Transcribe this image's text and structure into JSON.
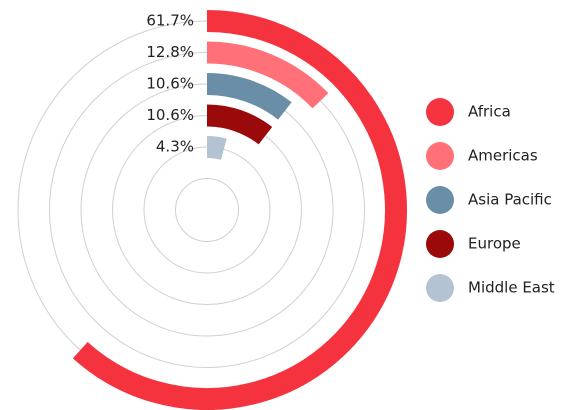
{
  "chart_data": {
    "type": "radial_bar",
    "categories": [
      "Africa",
      "Americas",
      "Asia Pacific",
      "Europe",
      "Middle East"
    ],
    "values": [
      61.7,
      12.8,
      10.6,
      10.6,
      4.3
    ],
    "value_labels": [
      "61.7%",
      "12.8%",
      "10.6%",
      "10.6%",
      "4.3%"
    ],
    "colors": [
      "#f5333f",
      "#ff7078",
      "#6a8ea8",
      "#9b0a0a",
      "#b3c3d3"
    ],
    "xlim": [
      0,
      100
    ],
    "legend": "right"
  }
}
